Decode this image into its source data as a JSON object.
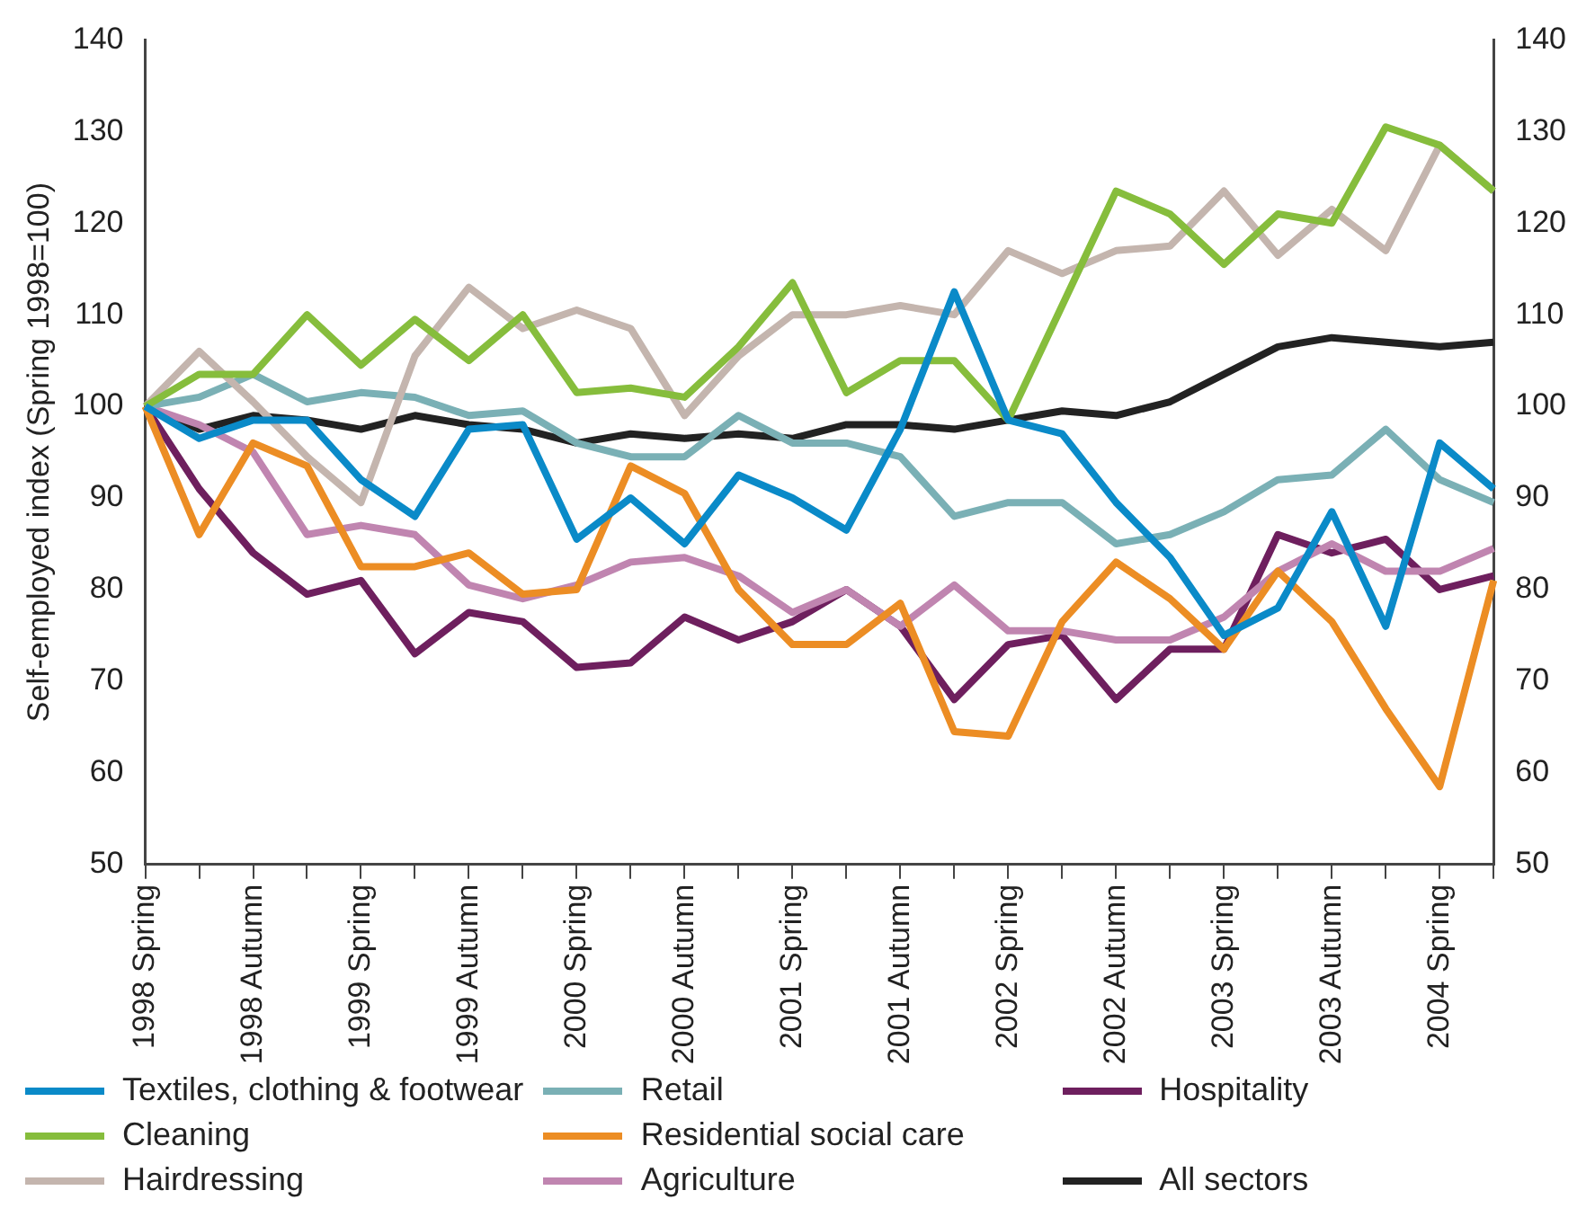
{
  "chart_data": {
    "type": "line",
    "ylabel": "Self-employed index (Spring 1998=100)",
    "categories": [
      "1998 Spring",
      null,
      "1998 Autumn",
      null,
      "1999 Spring",
      null,
      "1999 Autumn",
      null,
      "2000 Spring",
      null,
      "2000 Autumn",
      null,
      "2001 Spring",
      null,
      "2001 Autumn",
      null,
      "2002 Spring",
      null,
      "2002 Autumn",
      null,
      "2003 Spring",
      null,
      "2003 Autumn",
      null,
      "2004 Spring",
      null
    ],
    "series": [
      {
        "name": "Textiles, clothing & footwear",
        "color": "#0a8ac8",
        "values": [
          100,
          96.5,
          98.5,
          98.5,
          92,
          88,
          97.5,
          98,
          85.5,
          90,
          85,
          92.5,
          90,
          86.5,
          97.5,
          112.5,
          98.5,
          97,
          89.5,
          83.5,
          75,
          78,
          88.5,
          76,
          96,
          91
        ]
      },
      {
        "name": "Cleaning",
        "color": "#86bd3c",
        "values": [
          100,
          103.5,
          103.5,
          110,
          104.5,
          109.5,
          105,
          110,
          101.5,
          102,
          101,
          106.5,
          113.5,
          101.5,
          105,
          105,
          98.5,
          111,
          123.5,
          121,
          115.5,
          121,
          120,
          130.5,
          128.5,
          123.5
        ]
      },
      {
        "name": "Hairdressing",
        "color": "#c4b5ae",
        "values": [
          100,
          106,
          100.5,
          94.5,
          89.5,
          105.5,
          113,
          108.5,
          110.5,
          108.5,
          99,
          105.5,
          110,
          110,
          111,
          110,
          117,
          114.5,
          117,
          117.5,
          123.5,
          116.5,
          121.5,
          117,
          128.5,
          123.5
        ]
      },
      {
        "name": "Retail",
        "color": "#7ab0b5",
        "values": [
          100,
          101,
          103.5,
          100.5,
          101.5,
          101,
          99,
          99.5,
          96,
          94.5,
          94.5,
          99,
          96,
          96,
          94.5,
          88,
          89.5,
          89.5,
          85,
          86,
          88.5,
          92,
          92.5,
          97.5,
          92,
          89.5
        ]
      },
      {
        "name": "Residential social care",
        "color": "#ec8d24",
        "values": [
          100,
          86,
          96,
          93.5,
          82.5,
          82.5,
          84,
          79.5,
          80,
          93.5,
          90.5,
          80,
          74,
          74,
          78.5,
          64.5,
          64,
          76.5,
          83,
          79,
          73.5,
          82,
          76.5,
          67,
          58.5,
          81
        ]
      },
      {
        "name": "Agriculture",
        "color": "#c085b0",
        "values": [
          100,
          98,
          95,
          86,
          87,
          86,
          80.5,
          79,
          80.5,
          83,
          83.5,
          81.5,
          77.5,
          80,
          76,
          80.5,
          75.5,
          75.5,
          74.5,
          74.5,
          77,
          82,
          85,
          82,
          82,
          84.5
        ]
      },
      {
        "name": "Hospitality",
        "color": "#6e1f5e",
        "values": [
          100,
          91,
          84,
          79.5,
          81,
          73,
          77.5,
          76.5,
          71.5,
          72,
          77,
          74.5,
          76.5,
          80,
          76,
          68,
          74,
          75,
          68,
          73.5,
          73.5,
          86,
          84,
          85.5,
          80,
          81.5
        ]
      },
      {
        "name": "All sectors",
        "color": "#222222",
        "values": [
          100,
          97.5,
          99,
          98.5,
          97.5,
          99,
          98,
          97.5,
          96,
          97,
          96.5,
          97,
          96.5,
          98,
          98,
          97.5,
          98.5,
          99.5,
          99,
          100.5,
          103.5,
          106.5,
          107.5,
          107,
          106.5,
          107
        ]
      }
    ],
    "ylim": [
      50,
      140
    ],
    "yticks": [
      50,
      60,
      70,
      80,
      90,
      100,
      110,
      120,
      130,
      140
    ],
    "y2lim": [
      50,
      140
    ],
    "y2ticks": [
      50,
      60,
      70,
      80,
      90,
      100,
      110,
      120,
      130,
      140
    ],
    "grid": false,
    "legend": "bottom",
    "marker": "none",
    "line_style": "solid"
  }
}
